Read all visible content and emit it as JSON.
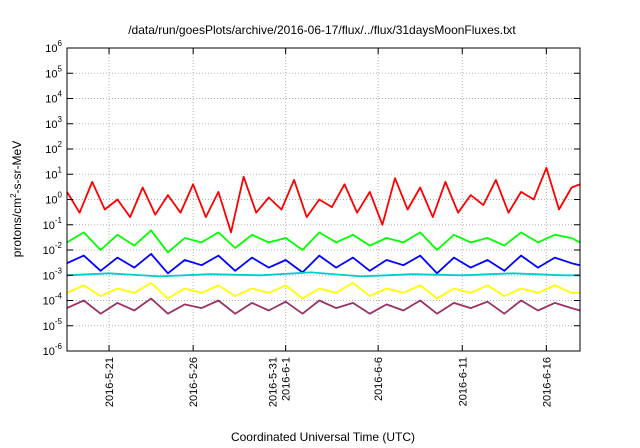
{
  "chart_data": {
    "type": "line",
    "title": "/data/run/goesPlots/archive/2016-06-17/flux/../flux/31daysMoonFluxes.txt",
    "xlabel": "Coordinated Universal Time (UTC)",
    "ylabel": "protons/cm2-s-sr-MeV",
    "ylabel_parts": {
      "base": "protons/cm",
      "sup": "2",
      "rest": "-s-sr-MeV"
    },
    "y_scale": "log",
    "ylim": [
      1e-06,
      1000000.0
    ],
    "y_ticks": [
      {
        "base": "10",
        "exp": "-6",
        "value": 1e-06
      },
      {
        "base": "10",
        "exp": "-5",
        "value": 1e-05
      },
      {
        "base": "10",
        "exp": "-4",
        "value": 0.0001
      },
      {
        "base": "10",
        "exp": "-3",
        "value": 0.001
      },
      {
        "base": "10",
        "exp": "-2",
        "value": 0.01
      },
      {
        "base": "10",
        "exp": "-1",
        "value": 0.1
      },
      {
        "base": "10",
        "exp": "0",
        "value": 1
      },
      {
        "base": "10",
        "exp": "1",
        "value": 10
      },
      {
        "base": "10",
        "exp": "2",
        "value": 100
      },
      {
        "base": "10",
        "exp": "3",
        "value": 1000
      },
      {
        "base": "10",
        "exp": "4",
        "value": 10000
      },
      {
        "base": "10",
        "exp": "5",
        "value": 100000
      },
      {
        "base": "10",
        "exp": "6",
        "value": 1000000
      }
    ],
    "xlim": [
      "2016-05-18T12:00",
      "2016-06-18T00:00"
    ],
    "x_ticks": [
      {
        "lines": [
          "2016-5-21"
        ],
        "date": "2016-05-21"
      },
      {
        "lines": [
          "2016-5-26"
        ],
        "date": "2016-05-26"
      },
      {
        "lines": [
          "2016-5-31",
          "2016-6-1"
        ],
        "date": "2016-05-31T12:00"
      },
      {
        "lines": [
          "2016-6-6"
        ],
        "date": "2016-06-06"
      },
      {
        "lines": [
          "2016-6-11"
        ],
        "date": "2016-06-11"
      },
      {
        "lines": [
          "2016-6-16"
        ],
        "date": "2016-06-16"
      }
    ],
    "grid": true,
    "series": [
      {
        "color": "#ff0000",
        "x": [
          "2016-05-18T12:00",
          "2016-05-19T06:00",
          "2016-05-20T00:00",
          "2016-05-20T18:00",
          "2016-05-21T12:00",
          "2016-05-22T06:00",
          "2016-05-23T00:00",
          "2016-05-23T18:00",
          "2016-05-24T12:00",
          "2016-05-25T06:00",
          "2016-05-26T00:00",
          "2016-05-26T18:00",
          "2016-05-27T12:00",
          "2016-05-28T06:00",
          "2016-05-29T00:00",
          "2016-05-29T18:00",
          "2016-05-30T12:00",
          "2016-05-31T06:00",
          "2016-06-01T00:00",
          "2016-06-01T18:00",
          "2016-06-02T12:00",
          "2016-06-03T06:00",
          "2016-06-04T00:00",
          "2016-06-04T18:00",
          "2016-06-05T12:00",
          "2016-06-06T06:00",
          "2016-06-07T00:00",
          "2016-06-07T18:00",
          "2016-06-08T12:00",
          "2016-06-09T06:00",
          "2016-06-10T00:00",
          "2016-06-10T18:00",
          "2016-06-11T12:00",
          "2016-06-12T06:00",
          "2016-06-13T00:00",
          "2016-06-13T18:00",
          "2016-06-14T12:00",
          "2016-06-15T06:00",
          "2016-06-16T00:00",
          "2016-06-16T18:00",
          "2016-06-17T12:00",
          "2016-06-18T00:00"
        ],
        "y": [
          2,
          0.3,
          5,
          0.4,
          1,
          0.2,
          3,
          0.25,
          1.5,
          0.3,
          4,
          0.2,
          2,
          0.05,
          8,
          0.3,
          1.2,
          0.4,
          6,
          0.2,
          1,
          0.5,
          4,
          0.3,
          2,
          0.1,
          7,
          0.4,
          3,
          0.2,
          5,
          0.3,
          1.5,
          0.6,
          6,
          0.3,
          2,
          1,
          18,
          0.4,
          3,
          4
        ]
      },
      {
        "color": "#00ff00",
        "x": [
          "2016-05-18T12:00",
          "2016-05-19T12:00",
          "2016-05-20T12:00",
          "2016-05-21T12:00",
          "2016-05-22T12:00",
          "2016-05-23T12:00",
          "2016-05-24T12:00",
          "2016-05-25T12:00",
          "2016-05-26T12:00",
          "2016-05-27T12:00",
          "2016-05-28T12:00",
          "2016-05-29T12:00",
          "2016-05-30T12:00",
          "2016-05-31T12:00",
          "2016-06-01T12:00",
          "2016-06-02T12:00",
          "2016-06-03T12:00",
          "2016-06-04T12:00",
          "2016-06-05T12:00",
          "2016-06-06T12:00",
          "2016-06-07T12:00",
          "2016-06-08T12:00",
          "2016-06-09T12:00",
          "2016-06-10T12:00",
          "2016-06-11T12:00",
          "2016-06-12T12:00",
          "2016-06-13T12:00",
          "2016-06-14T12:00",
          "2016-06-15T12:00",
          "2016-06-16T12:00",
          "2016-06-17T12:00",
          "2016-06-18T00:00"
        ],
        "y": [
          0.02,
          0.05,
          0.01,
          0.04,
          0.015,
          0.06,
          0.008,
          0.03,
          0.02,
          0.05,
          0.012,
          0.04,
          0.02,
          0.03,
          0.01,
          0.05,
          0.02,
          0.04,
          0.015,
          0.03,
          0.02,
          0.05,
          0.01,
          0.04,
          0.02,
          0.03,
          0.015,
          0.05,
          0.02,
          0.04,
          0.03,
          0.02
        ]
      },
      {
        "color": "#0000ff",
        "x": [
          "2016-05-18T12:00",
          "2016-05-19T12:00",
          "2016-05-20T12:00",
          "2016-05-21T12:00",
          "2016-05-22T12:00",
          "2016-05-23T12:00",
          "2016-05-24T12:00",
          "2016-05-25T12:00",
          "2016-05-26T12:00",
          "2016-05-27T12:00",
          "2016-05-28T12:00",
          "2016-05-29T12:00",
          "2016-05-30T12:00",
          "2016-05-31T12:00",
          "2016-06-01T12:00",
          "2016-06-02T12:00",
          "2016-06-03T12:00",
          "2016-06-04T12:00",
          "2016-06-05T12:00",
          "2016-06-06T12:00",
          "2016-06-07T12:00",
          "2016-06-08T12:00",
          "2016-06-09T12:00",
          "2016-06-10T12:00",
          "2016-06-11T12:00",
          "2016-06-12T12:00",
          "2016-06-13T12:00",
          "2016-06-14T12:00",
          "2016-06-15T12:00",
          "2016-06-16T12:00",
          "2016-06-17T12:00",
          "2016-06-18T00:00"
        ],
        "y": [
          0.003,
          0.006,
          0.0015,
          0.005,
          0.002,
          0.007,
          0.0012,
          0.004,
          0.0025,
          0.006,
          0.0015,
          0.005,
          0.002,
          0.004,
          0.0013,
          0.006,
          0.002,
          0.005,
          0.0015,
          0.004,
          0.0025,
          0.006,
          0.0012,
          0.005,
          0.002,
          0.004,
          0.0015,
          0.006,
          0.002,
          0.005,
          0.003,
          0.0025
        ]
      },
      {
        "color": "#00cccc",
        "x": [
          "2016-05-18T12:00",
          "2016-05-21T00:00",
          "2016-05-24T00:00",
          "2016-05-27T00:00",
          "2016-05-30T00:00",
          "2016-06-02T00:00",
          "2016-06-05T00:00",
          "2016-06-08T00:00",
          "2016-06-11T00:00",
          "2016-06-14T00:00",
          "2016-06-17T00:00",
          "2016-06-18T00:00"
        ],
        "y": [
          0.001,
          0.0012,
          0.0009,
          0.0011,
          0.001,
          0.0013,
          0.0009,
          0.0011,
          0.001,
          0.0012,
          0.001,
          0.001
        ]
      },
      {
        "color": "#ffff00",
        "x": [
          "2016-05-18T12:00",
          "2016-05-19T12:00",
          "2016-05-20T12:00",
          "2016-05-21T12:00",
          "2016-05-22T12:00",
          "2016-05-23T12:00",
          "2016-05-24T12:00",
          "2016-05-25T12:00",
          "2016-05-26T12:00",
          "2016-05-27T12:00",
          "2016-05-28T12:00",
          "2016-05-29T12:00",
          "2016-05-30T12:00",
          "2016-05-31T12:00",
          "2016-06-01T12:00",
          "2016-06-02T12:00",
          "2016-06-03T12:00",
          "2016-06-04T12:00",
          "2016-06-05T12:00",
          "2016-06-06T12:00",
          "2016-06-07T12:00",
          "2016-06-08T12:00",
          "2016-06-09T12:00",
          "2016-06-10T12:00",
          "2016-06-11T12:00",
          "2016-06-12T12:00",
          "2016-06-13T12:00",
          "2016-06-14T12:00",
          "2016-06-15T12:00",
          "2016-06-16T12:00",
          "2016-06-17T12:00",
          "2016-06-18T00:00"
        ],
        "y": [
          0.0002,
          0.0004,
          0.00015,
          0.0003,
          0.0002,
          0.0005,
          0.00012,
          0.0003,
          0.0002,
          0.0004,
          0.00015,
          0.0003,
          0.0002,
          0.0004,
          0.00012,
          0.0003,
          0.0002,
          0.0005,
          0.00015,
          0.0003,
          0.0002,
          0.0004,
          0.00012,
          0.0003,
          0.0002,
          0.0004,
          0.00015,
          0.0003,
          0.0002,
          0.0004,
          0.0002,
          0.0002
        ]
      },
      {
        "color": "#993366",
        "x": [
          "2016-05-18T12:00",
          "2016-05-19T12:00",
          "2016-05-20T12:00",
          "2016-05-21T12:00",
          "2016-05-22T12:00",
          "2016-05-23T12:00",
          "2016-05-24T12:00",
          "2016-05-25T12:00",
          "2016-05-26T12:00",
          "2016-05-27T12:00",
          "2016-05-28T12:00",
          "2016-05-29T12:00",
          "2016-05-30T12:00",
          "2016-05-31T12:00",
          "2016-06-01T12:00",
          "2016-06-02T12:00",
          "2016-06-03T12:00",
          "2016-06-04T12:00",
          "2016-06-05T12:00",
          "2016-06-06T12:00",
          "2016-06-07T12:00",
          "2016-06-08T12:00",
          "2016-06-09T12:00",
          "2016-06-10T12:00",
          "2016-06-11T12:00",
          "2016-06-12T12:00",
          "2016-06-13T12:00",
          "2016-06-14T12:00",
          "2016-06-15T12:00",
          "2016-06-16T12:00",
          "2016-06-17T12:00",
          "2016-06-18T00:00"
        ],
        "y": [
          5e-05,
          0.0001,
          3e-05,
          8e-05,
          4e-05,
          0.00012,
          3e-05,
          7e-05,
          5e-05,
          0.0001,
          3e-05,
          8e-05,
          4e-05,
          9e-05,
          3e-05,
          0.0001,
          5e-05,
          8e-05,
          3e-05,
          7e-05,
          4e-05,
          0.0001,
          3e-05,
          8e-05,
          5e-05,
          9e-05,
          3e-05,
          0.0001,
          4e-05,
          8e-05,
          5e-05,
          4e-05
        ]
      }
    ]
  }
}
